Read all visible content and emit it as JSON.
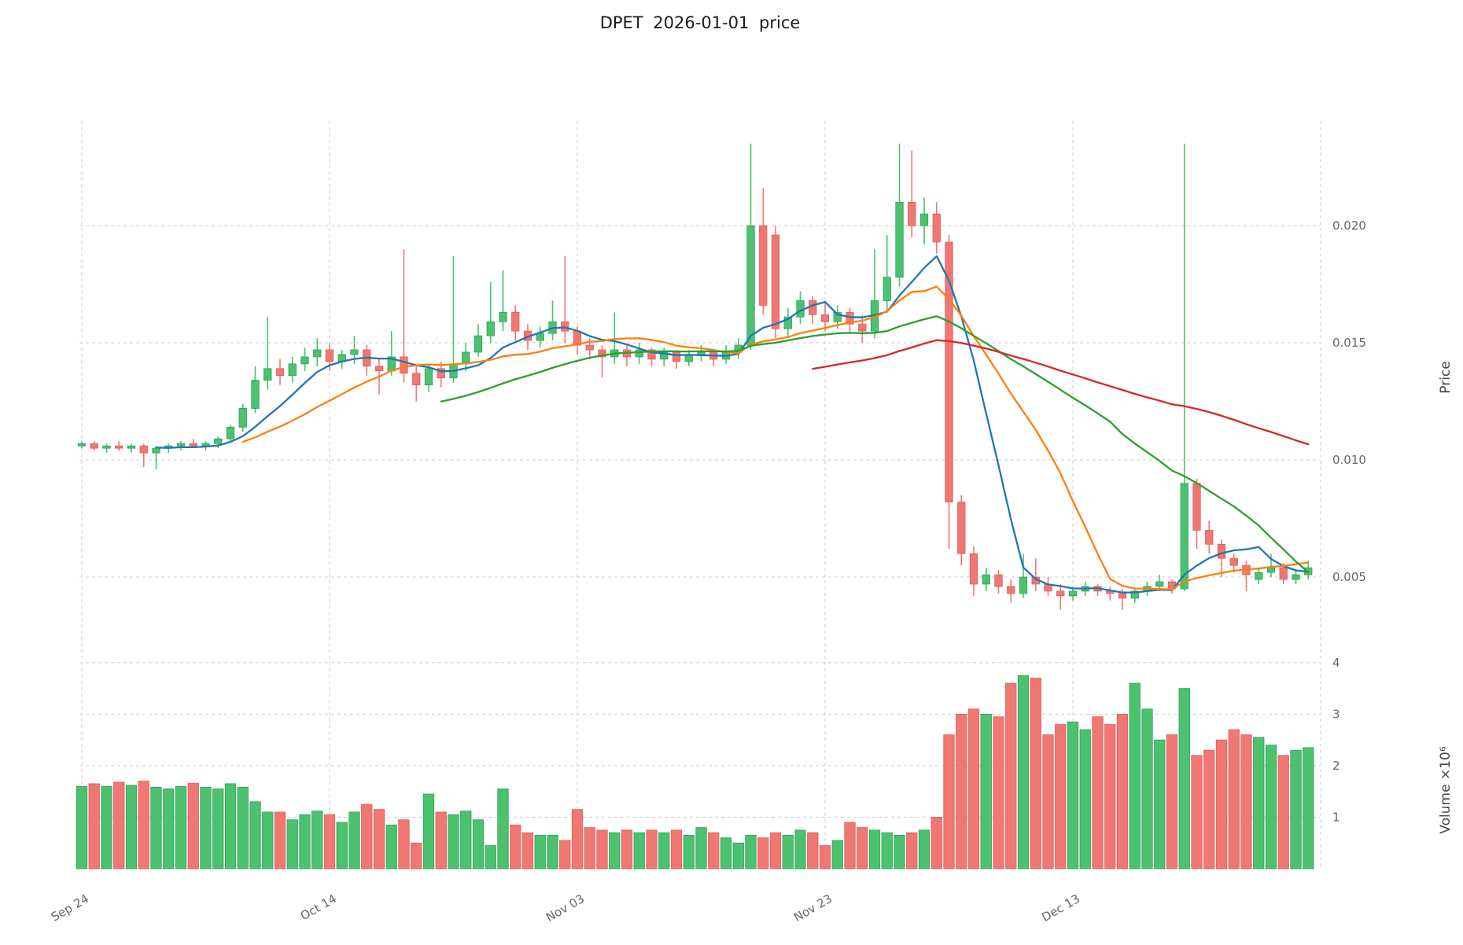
{
  "chart_data": {
    "type": "candlestick",
    "title": "DPET  2026-01-01  price",
    "symbol": "DPET",
    "as_of_date": "2026-01-01",
    "price_axis": {
      "label": "Price",
      "ticks": [
        0.005,
        0.01,
        0.015,
        0.02
      ],
      "tick_labels": [
        "0.005",
        "0.010",
        "0.015",
        "0.020"
      ],
      "ylim": [
        0.00245,
        0.0246
      ]
    },
    "volume_axis": {
      "label": "Volume ×10⁶",
      "unit": 1000000,
      "ticks": [
        1,
        2,
        3,
        4
      ],
      "tick_labels": [
        "1",
        "2",
        "3",
        "4"
      ],
      "ylim": [
        0,
        4.12
      ]
    },
    "x_axis": {
      "tick_indices": [
        0,
        20,
        40,
        60,
        80,
        100
      ],
      "tick_labels": [
        "Sep 24",
        "Oct 14",
        "Nov 03",
        "Nov 23",
        "Dec 13",
        ""
      ]
    },
    "grid": true,
    "legend": "none",
    "colors": {
      "up": "#4cc26e",
      "down": "#f17772",
      "up_edge": "#2f9e5f",
      "down_edge": "#d95f5f",
      "ma_blue": "#1f77b4",
      "ma_orange": "#ff7f0e",
      "ma_green": "#2ca02c",
      "ma_red": "#d62728",
      "grid": "#cccccc",
      "tick_text": "#666666",
      "axis_title_text": "#444444",
      "title_text": "#1a1a1a"
    },
    "moving_averages": [
      {
        "name": "ma-7",
        "window": 7,
        "color_key": "ma_blue"
      },
      {
        "name": "ma-14",
        "window": 14,
        "color_key": "ma_orange"
      },
      {
        "name": "ma-30",
        "window": 30,
        "color_key": "ma_green"
      },
      {
        "name": "ma-60",
        "window": 60,
        "color_key": "ma_red"
      }
    ],
    "columns": [
      "date",
      "open",
      "high",
      "low",
      "close",
      "volume_millions"
    ],
    "ohlcv": [
      [
        "2025-09-24",
        0.0106,
        0.0108,
        0.0105,
        0.0107,
        1.6
      ],
      [
        "2025-09-25",
        0.0107,
        0.0108,
        0.0104,
        0.0105,
        1.65
      ],
      [
        "2025-09-26",
        0.0105,
        0.0107,
        0.0103,
        0.0106,
        1.6
      ],
      [
        "2025-09-27",
        0.0106,
        0.0108,
        0.0104,
        0.0105,
        1.68
      ],
      [
        "2025-09-28",
        0.0105,
        0.0107,
        0.0103,
        0.0106,
        1.62
      ],
      [
        "2025-09-29",
        0.0106,
        0.0107,
        0.0097,
        0.0103,
        1.7
      ],
      [
        "2025-09-30",
        0.0103,
        0.0106,
        0.0096,
        0.0105,
        1.58
      ],
      [
        "2025-10-01",
        0.0105,
        0.0107,
        0.0103,
        0.0106,
        1.55
      ],
      [
        "2025-10-02",
        0.0106,
        0.0108,
        0.0104,
        0.0107,
        1.6
      ],
      [
        "2025-10-03",
        0.0107,
        0.0109,
        0.0105,
        0.0106,
        1.66
      ],
      [
        "2025-10-04",
        0.0106,
        0.0108,
        0.0104,
        0.0107,
        1.58
      ],
      [
        "2025-10-05",
        0.0107,
        0.011,
        0.0105,
        0.0109,
        1.55
      ],
      [
        "2025-10-06",
        0.0109,
        0.0115,
        0.0108,
        0.0114,
        1.65
      ],
      [
        "2025-10-07",
        0.0114,
        0.0124,
        0.0112,
        0.0122,
        1.58
      ],
      [
        "2025-10-08",
        0.0122,
        0.014,
        0.012,
        0.0134,
        1.3
      ],
      [
        "2025-10-09",
        0.0134,
        0.0161,
        0.013,
        0.0139,
        1.1
      ],
      [
        "2025-10-10",
        0.0139,
        0.0143,
        0.0132,
        0.0136,
        1.1
      ],
      [
        "2025-10-11",
        0.0136,
        0.0144,
        0.0133,
        0.0141,
        0.95
      ],
      [
        "2025-10-12",
        0.0141,
        0.0148,
        0.0138,
        0.0144,
        1.05
      ],
      [
        "2025-10-13",
        0.0144,
        0.0152,
        0.014,
        0.0147,
        1.12
      ],
      [
        "2025-10-14",
        0.0147,
        0.015,
        0.0138,
        0.0142,
        1.05
      ],
      [
        "2025-10-15",
        0.0142,
        0.0147,
        0.0139,
        0.0145,
        0.9
      ],
      [
        "2025-10-16",
        0.0145,
        0.0153,
        0.0141,
        0.0147,
        1.1
      ],
      [
        "2025-10-17",
        0.0147,
        0.0149,
        0.0136,
        0.014,
        1.25
      ],
      [
        "2025-10-18",
        0.014,
        0.0143,
        0.0128,
        0.0138,
        1.15
      ],
      [
        "2025-10-19",
        0.0138,
        0.0155,
        0.0136,
        0.0144,
        0.85
      ],
      [
        "2025-10-20",
        0.0144,
        0.019,
        0.0133,
        0.0137,
        0.95
      ],
      [
        "2025-10-21",
        0.0137,
        0.014,
        0.0125,
        0.0132,
        0.5
      ],
      [
        "2025-10-22",
        0.0132,
        0.0141,
        0.0129,
        0.0139,
        1.45
      ],
      [
        "2025-10-23",
        0.0139,
        0.0142,
        0.0131,
        0.0135,
        1.1
      ],
      [
        "2025-10-24",
        0.0135,
        0.0187,
        0.0133,
        0.0141,
        1.05
      ],
      [
        "2025-10-25",
        0.0141,
        0.015,
        0.0138,
        0.0146,
        1.12
      ],
      [
        "2025-10-26",
        0.0146,
        0.0158,
        0.0144,
        0.0153,
        0.95
      ],
      [
        "2025-10-27",
        0.0153,
        0.0176,
        0.015,
        0.0159,
        0.45
      ],
      [
        "2025-10-28",
        0.0159,
        0.0181,
        0.0155,
        0.0163,
        1.55
      ],
      [
        "2025-10-29",
        0.0163,
        0.0166,
        0.0151,
        0.0155,
        0.85
      ],
      [
        "2025-10-30",
        0.0155,
        0.0158,
        0.0147,
        0.0151,
        0.7
      ],
      [
        "2025-10-31",
        0.0151,
        0.0157,
        0.0148,
        0.0154,
        0.65
      ],
      [
        "2025-11-01",
        0.0154,
        0.0168,
        0.0151,
        0.0159,
        0.65
      ],
      [
        "2025-11-02",
        0.0159,
        0.0187,
        0.015,
        0.0155,
        0.55
      ],
      [
        "2025-11-03",
        0.0155,
        0.0157,
        0.0145,
        0.0149,
        1.15
      ],
      [
        "2025-11-04",
        0.0149,
        0.0152,
        0.0143,
        0.0147,
        0.8
      ],
      [
        "2025-11-05",
        0.0147,
        0.0149,
        0.0135,
        0.0144,
        0.75
      ],
      [
        "2025-11-06",
        0.0144,
        0.0163,
        0.0141,
        0.0147,
        0.7
      ],
      [
        "2025-11-07",
        0.0147,
        0.0149,
        0.014,
        0.0144,
        0.75
      ],
      [
        "2025-11-08",
        0.0144,
        0.015,
        0.0141,
        0.0147,
        0.7
      ],
      [
        "2025-11-09",
        0.0147,
        0.0148,
        0.014,
        0.0143,
        0.75
      ],
      [
        "2025-11-10",
        0.0143,
        0.0148,
        0.014,
        0.0146,
        0.7
      ],
      [
        "2025-11-11",
        0.0146,
        0.0147,
        0.0139,
        0.0142,
        0.75
      ],
      [
        "2025-11-12",
        0.0142,
        0.0147,
        0.014,
        0.0145,
        0.65
      ],
      [
        "2025-11-13",
        0.0145,
        0.0149,
        0.0142,
        0.0146,
        0.8
      ],
      [
        "2025-11-14",
        0.0146,
        0.0147,
        0.014,
        0.0143,
        0.7
      ],
      [
        "2025-11-15",
        0.0143,
        0.0149,
        0.0141,
        0.0146,
        0.6
      ],
      [
        "2025-11-16",
        0.0146,
        0.0152,
        0.0143,
        0.0149,
        0.5
      ],
      [
        "2025-11-17",
        0.0149,
        0.0235,
        0.0147,
        0.02,
        0.65
      ],
      [
        "2025-11-18",
        0.02,
        0.0216,
        0.0162,
        0.0166,
        0.6
      ],
      [
        "2025-11-19",
        0.0196,
        0.02,
        0.0152,
        0.0156,
        0.7
      ],
      [
        "2025-11-20",
        0.0156,
        0.0165,
        0.0152,
        0.0161,
        0.65
      ],
      [
        "2025-11-21",
        0.0161,
        0.0172,
        0.0158,
        0.0168,
        0.75
      ],
      [
        "2025-11-22",
        0.0168,
        0.017,
        0.0158,
        0.0162,
        0.7
      ],
      [
        "2025-11-23",
        0.0162,
        0.0168,
        0.0155,
        0.0159,
        0.45
      ],
      [
        "2025-11-24",
        0.0159,
        0.0166,
        0.0156,
        0.0163,
        0.55
      ],
      [
        "2025-11-25",
        0.0163,
        0.0165,
        0.0154,
        0.0158,
        0.9
      ],
      [
        "2025-11-26",
        0.0158,
        0.0162,
        0.015,
        0.0155,
        0.8
      ],
      [
        "2025-11-27",
        0.0155,
        0.019,
        0.0152,
        0.0168,
        0.75
      ],
      [
        "2025-11-28",
        0.0168,
        0.0196,
        0.0164,
        0.0178,
        0.7
      ],
      [
        "2025-11-29",
        0.0178,
        0.0235,
        0.0174,
        0.021,
        0.65
      ],
      [
        "2025-11-30",
        0.021,
        0.0232,
        0.0195,
        0.02,
        0.7
      ],
      [
        "2025-12-01",
        0.02,
        0.0212,
        0.0192,
        0.0205,
        0.75
      ],
      [
        "2025-12-02",
        0.0205,
        0.021,
        0.0188,
        0.0193,
        1.0
      ],
      [
        "2025-12-03",
        0.0193,
        0.0196,
        0.0062,
        0.0082,
        2.6
      ],
      [
        "2025-12-04",
        0.0082,
        0.0085,
        0.0055,
        0.006,
        3.0
      ],
      [
        "2025-12-05",
        0.006,
        0.0063,
        0.0042,
        0.0047,
        3.1
      ],
      [
        "2025-12-06",
        0.0047,
        0.0054,
        0.0044,
        0.0051,
        3.0
      ],
      [
        "2025-12-07",
        0.0051,
        0.0053,
        0.0043,
        0.0046,
        2.95
      ],
      [
        "2025-12-08",
        0.0046,
        0.0049,
        0.0039,
        0.0043,
        3.6
      ],
      [
        "2025-12-09",
        0.0043,
        0.006,
        0.0041,
        0.005,
        3.75
      ],
      [
        "2025-12-10",
        0.005,
        0.0058,
        0.0044,
        0.0047,
        3.7
      ],
      [
        "2025-12-11",
        0.0047,
        0.005,
        0.0042,
        0.0044,
        2.6
      ],
      [
        "2025-12-12",
        0.0044,
        0.0047,
        0.0036,
        0.0042,
        2.8
      ],
      [
        "2025-12-13",
        0.0042,
        0.0046,
        0.004,
        0.0044,
        2.85
      ],
      [
        "2025-12-14",
        0.0044,
        0.0048,
        0.0042,
        0.0046,
        2.7
      ],
      [
        "2025-12-15",
        0.0046,
        0.0047,
        0.0042,
        0.0044,
        2.95
      ],
      [
        "2025-12-16",
        0.0044,
        0.0046,
        0.004,
        0.0043,
        2.8
      ],
      [
        "2025-12-17",
        0.0043,
        0.0045,
        0.0036,
        0.0041,
        3.0
      ],
      [
        "2025-12-18",
        0.0041,
        0.0045,
        0.0039,
        0.0044,
        3.6
      ],
      [
        "2025-12-19",
        0.0044,
        0.0048,
        0.0042,
        0.0046,
        3.1
      ],
      [
        "2025-12-20",
        0.0046,
        0.0051,
        0.0044,
        0.0048,
        2.5
      ],
      [
        "2025-12-21",
        0.0048,
        0.0049,
        0.0043,
        0.0045,
        2.6
      ],
      [
        "2025-12-22",
        0.0045,
        0.0235,
        0.0044,
        0.009,
        3.5
      ],
      [
        "2025-12-23",
        0.009,
        0.0092,
        0.0062,
        0.007,
        2.2
      ],
      [
        "2025-12-24",
        0.007,
        0.0074,
        0.006,
        0.0064,
        2.3
      ],
      [
        "2025-12-25",
        0.0064,
        0.0066,
        0.005,
        0.0058,
        2.5
      ],
      [
        "2025-12-26",
        0.0058,
        0.006,
        0.0052,
        0.0055,
        2.7
      ],
      [
        "2025-12-27",
        0.0055,
        0.0057,
        0.0044,
        0.0051,
        2.6
      ],
      [
        "2025-12-28",
        0.0049,
        0.0054,
        0.0047,
        0.0052,
        2.55
      ],
      [
        "2025-12-29",
        0.0052,
        0.006,
        0.005,
        0.0054,
        2.4
      ],
      [
        "2025-12-30",
        0.0054,
        0.0056,
        0.0047,
        0.0049,
        2.2
      ],
      [
        "2025-12-31",
        0.0049,
        0.0053,
        0.0047,
        0.0051,
        2.3
      ],
      [
        "2026-01-01",
        0.0051,
        0.0057,
        0.0049,
        0.0054,
        2.35
      ]
    ]
  }
}
